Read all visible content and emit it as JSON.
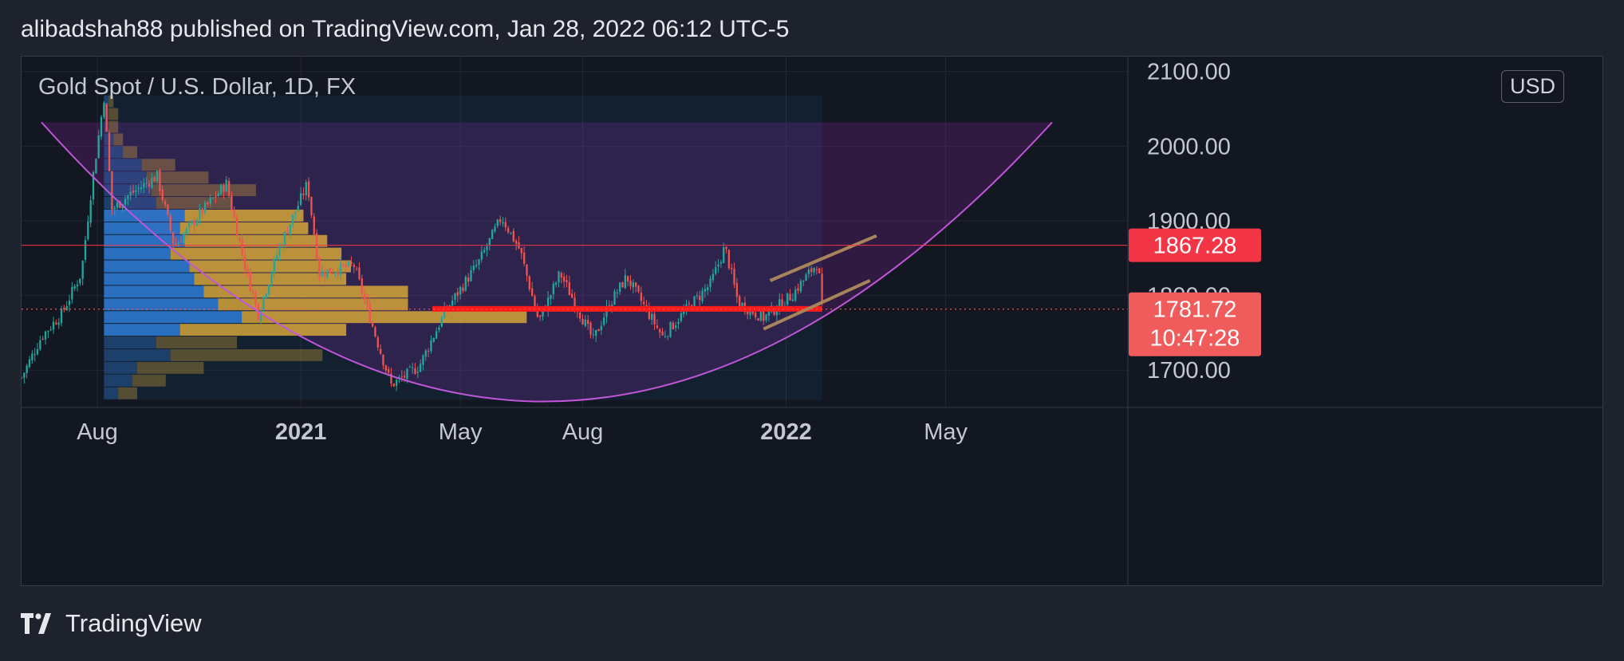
{
  "header": {
    "publisher_line": "alibadshah88 published on TradingView.com, Jan 28, 2022 06:12 UTC-5"
  },
  "chart_header": {
    "symbol_title": "Gold Spot / U.S. Dollar, 1D, FX",
    "currency": "USD"
  },
  "footer": {
    "brand": "TradingView"
  },
  "colors": {
    "background": "#131722",
    "up_candle": "#26a69a",
    "down_candle": "#ef5350",
    "arc": "#c056d8",
    "channel": "#a8845a",
    "support_line": "#ff1b1b",
    "last_price_tag": "#f23645",
    "current_price_tag": "#f05b5b",
    "vp_blue": "#2f7ed8",
    "vp_gold": "#d4a53a"
  },
  "chart_data": {
    "type": "candlestick",
    "title": "Gold Spot / U.S. Dollar, 1D, FX",
    "x_ticks": [
      {
        "label": "Aug",
        "date": "2020-08-01",
        "bold": false
      },
      {
        "label": "2021",
        "date": "2021-01-01",
        "bold": true
      },
      {
        "label": "May",
        "date": "2021-05-01",
        "bold": false
      },
      {
        "label": "Aug",
        "date": "2021-08-01",
        "bold": false
      },
      {
        "label": "2022",
        "date": "2022-01-01",
        "bold": true
      },
      {
        "label": "May",
        "date": "2022-05-01",
        "bold": false
      }
    ],
    "y_ticks": [
      "1700.00",
      "1800.00",
      "1900.00",
      "2000.00",
      "2100.00"
    ],
    "y_range": [
      1650,
      2120
    ],
    "x_range": [
      "2020-06-05",
      "2022-09-15"
    ],
    "grid": true,
    "close_series": [
      {
        "date": "2020-06-05",
        "close": 1690
      },
      {
        "date": "2020-06-20",
        "close": 1745
      },
      {
        "date": "2020-07-05",
        "close": 1775
      },
      {
        "date": "2020-07-20",
        "close": 1830
      },
      {
        "date": "2020-07-28",
        "close": 1950
      },
      {
        "date": "2020-08-06",
        "close": 2065
      },
      {
        "date": "2020-08-12",
        "close": 1915
      },
      {
        "date": "2020-08-25",
        "close": 1935
      },
      {
        "date": "2020-09-15",
        "close": 1960
      },
      {
        "date": "2020-09-28",
        "close": 1865
      },
      {
        "date": "2020-10-15",
        "close": 1905
      },
      {
        "date": "2020-11-06",
        "close": 1950
      },
      {
        "date": "2020-11-20",
        "close": 1840
      },
      {
        "date": "2020-11-30",
        "close": 1775
      },
      {
        "date": "2020-12-15",
        "close": 1860
      },
      {
        "date": "2021-01-06",
        "close": 1950
      },
      {
        "date": "2021-01-15",
        "close": 1830
      },
      {
        "date": "2021-02-10",
        "close": 1840
      },
      {
        "date": "2021-03-01",
        "close": 1730
      },
      {
        "date": "2021-03-10",
        "close": 1680
      },
      {
        "date": "2021-03-31",
        "close": 1705
      },
      {
        "date": "2021-04-20",
        "close": 1780
      },
      {
        "date": "2021-05-15",
        "close": 1845
      },
      {
        "date": "2021-06-01",
        "close": 1905
      },
      {
        "date": "2021-06-15",
        "close": 1860
      },
      {
        "date": "2021-06-29",
        "close": 1765
      },
      {
        "date": "2021-07-15",
        "close": 1830
      },
      {
        "date": "2021-08-09",
        "close": 1740
      },
      {
        "date": "2021-08-20",
        "close": 1785
      },
      {
        "date": "2021-09-03",
        "close": 1825
      },
      {
        "date": "2021-09-30",
        "close": 1745
      },
      {
        "date": "2021-10-20",
        "close": 1785
      },
      {
        "date": "2021-11-05",
        "close": 1815
      },
      {
        "date": "2021-11-16",
        "close": 1865
      },
      {
        "date": "2021-11-26",
        "close": 1790
      },
      {
        "date": "2021-12-15",
        "close": 1770
      },
      {
        "date": "2022-01-05",
        "close": 1800
      },
      {
        "date": "2022-01-25",
        "close": 1845
      },
      {
        "date": "2022-01-28",
        "close": 1782
      }
    ],
    "price_levels": [
      {
        "price": 1867.28,
        "label": "1867.28"
      },
      {
        "price": 1781.72,
        "label": "1781.72",
        "countdown": "10:47:28"
      }
    ],
    "support_zone": {
      "price": 1782,
      "from": "2021-04-10",
      "to": "2022-01-28"
    },
    "cup_arc": {
      "left": {
        "date": "2020-06-20",
        "price": 2032
      },
      "bottom": {
        "date": "2021-07-01",
        "price": 1658
      },
      "right": {
        "date": "2022-07-20",
        "price": 2032
      }
    },
    "rising_channel": {
      "upper": {
        "from": {
          "date": "2021-12-20",
          "price": 1820
        },
        "to": {
          "date": "2022-03-10",
          "price": 1880
        }
      },
      "lower": {
        "from": {
          "date": "2021-12-15",
          "price": 1755
        },
        "to": {
          "date": "2022-03-05",
          "price": 1820
        }
      }
    },
    "volume_profile": {
      "range": [
        "2020-08-06",
        "2022-01-28"
      ],
      "rows": [
        {
          "low": 1660,
          "high": 1677,
          "up": 0.03,
          "down": 0.04
        },
        {
          "low": 1677,
          "high": 1694,
          "up": 0.06,
          "down": 0.07
        },
        {
          "low": 1694,
          "high": 1711,
          "up": 0.07,
          "down": 0.14
        },
        {
          "low": 1711,
          "high": 1728,
          "up": 0.14,
          "down": 0.32
        },
        {
          "low": 1728,
          "high": 1745,
          "up": 0.11,
          "down": 0.17
        },
        {
          "low": 1745,
          "high": 1762,
          "up": 0.16,
          "down": 0.35
        },
        {
          "low": 1762,
          "high": 1779,
          "up": 0.29,
          "down": 0.6
        },
        {
          "low": 1779,
          "high": 1796,
          "up": 0.24,
          "down": 0.4
        },
        {
          "low": 1796,
          "high": 1813,
          "up": 0.21,
          "down": 0.43
        },
        {
          "low": 1813,
          "high": 1830,
          "up": 0.19,
          "down": 0.32
        },
        {
          "low": 1830,
          "high": 1847,
          "up": 0.18,
          "down": 0.34
        },
        {
          "low": 1847,
          "high": 1864,
          "up": 0.14,
          "down": 0.36
        },
        {
          "low": 1864,
          "high": 1881,
          "up": 0.17,
          "down": 0.3
        },
        {
          "low": 1881,
          "high": 1898,
          "up": 0.16,
          "down": 0.27
        },
        {
          "low": 1898,
          "high": 1915,
          "up": 0.17,
          "down": 0.25
        },
        {
          "low": 1915,
          "high": 1932,
          "up": 0.11,
          "down": 0.16
        },
        {
          "low": 1932,
          "high": 1949,
          "up": 0.1,
          "down": 0.22
        },
        {
          "low": 1949,
          "high": 1966,
          "up": 0.09,
          "down": 0.13
        },
        {
          "low": 1966,
          "high": 1983,
          "up": 0.08,
          "down": 0.07
        },
        {
          "low": 1983,
          "high": 2000,
          "up": 0.04,
          "down": 0.03
        },
        {
          "low": 2000,
          "high": 2017,
          "up": 0.02,
          "down": 0.02
        },
        {
          "low": 2017,
          "high": 2034,
          "up": 0.01,
          "down": 0.02
        },
        {
          "low": 2034,
          "high": 2051,
          "up": 0.01,
          "down": 0.02
        },
        {
          "low": 2051,
          "high": 2068,
          "up": 0.01,
          "down": 0.01
        }
      ]
    }
  }
}
